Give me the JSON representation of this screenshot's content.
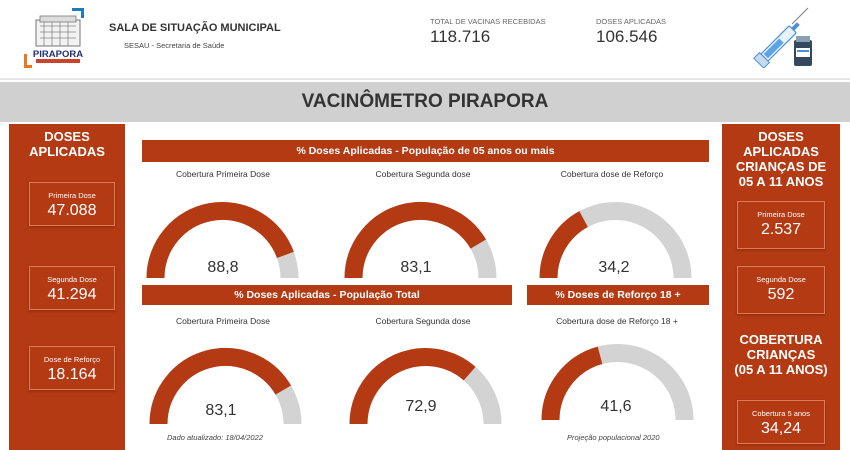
{
  "header": {
    "title": "SALA DE SITUAÇÃO MUNICIPAL",
    "subtitle": "SESAU - Secretaria de Saúde",
    "logo_text": "PIRAPORA",
    "stats": [
      {
        "label": "TOTAL DE VACINAS RECEBIDAS",
        "value": "118.716"
      },
      {
        "label": "DOSES APLICADAS",
        "value": "106.546"
      }
    ]
  },
  "page_title": "VACINÔMETRO PIRAPORA",
  "left_panel": {
    "heading_line1": "DOSES",
    "heading_line2": "APLICADAS",
    "cards": [
      {
        "label": "Primeira Dose",
        "value": "47.088"
      },
      {
        "label": "Segunda Dose",
        "value": "41.294"
      },
      {
        "label": "Dose de Reforço",
        "value": "18.164"
      }
    ]
  },
  "right_panel": {
    "heading_lines": [
      "DOSES",
      "APLICADAS",
      "CRIANÇAS DE",
      "05 A 11 ANOS"
    ],
    "cards": [
      {
        "label": "Primeira Dose",
        "value": "2.537"
      },
      {
        "label": "Segunda Dose",
        "value": "592"
      }
    ],
    "coverage_heading_lines": [
      "COBERTURA",
      "CRIANÇAS",
      "(05 A 11 ANOS)"
    ],
    "coverage_card": {
      "label": "Cobertura 5 anos",
      "value": "34,24"
    }
  },
  "section1": {
    "banner": "% Doses Aplicadas - População de 05 anos ou mais",
    "gauges": [
      {
        "label": "Cobertura Primeira Dose",
        "value": "88,8",
        "percent": 88.8
      },
      {
        "label": "Cobertura Segunda dose",
        "value": "83,1",
        "percent": 83.1
      },
      {
        "label": "Cobertura dose de Reforço",
        "value": "34,2",
        "percent": 34.2
      }
    ]
  },
  "section2": {
    "banner": "% Doses Aplicadas - População Total",
    "gauges": [
      {
        "label": "Cobertura Primeira Dose",
        "value": "83,1",
        "percent": 83.1
      },
      {
        "label": "Cobertura Segunda dose",
        "value": "72,9",
        "percent": 72.9
      }
    ],
    "note": "Dado atualizado: 18/04/2022"
  },
  "section3": {
    "banner": "% Doses de Reforço 18 +",
    "gauge": {
      "label": "Cobertura dose de Reforço 18 +",
      "value": "41,6",
      "percent": 41.6
    },
    "note": "Projeção populacional 2020"
  },
  "colors": {
    "accent": "#b43a14",
    "track": "#d3d3d3",
    "band": "#d0d0d0"
  }
}
